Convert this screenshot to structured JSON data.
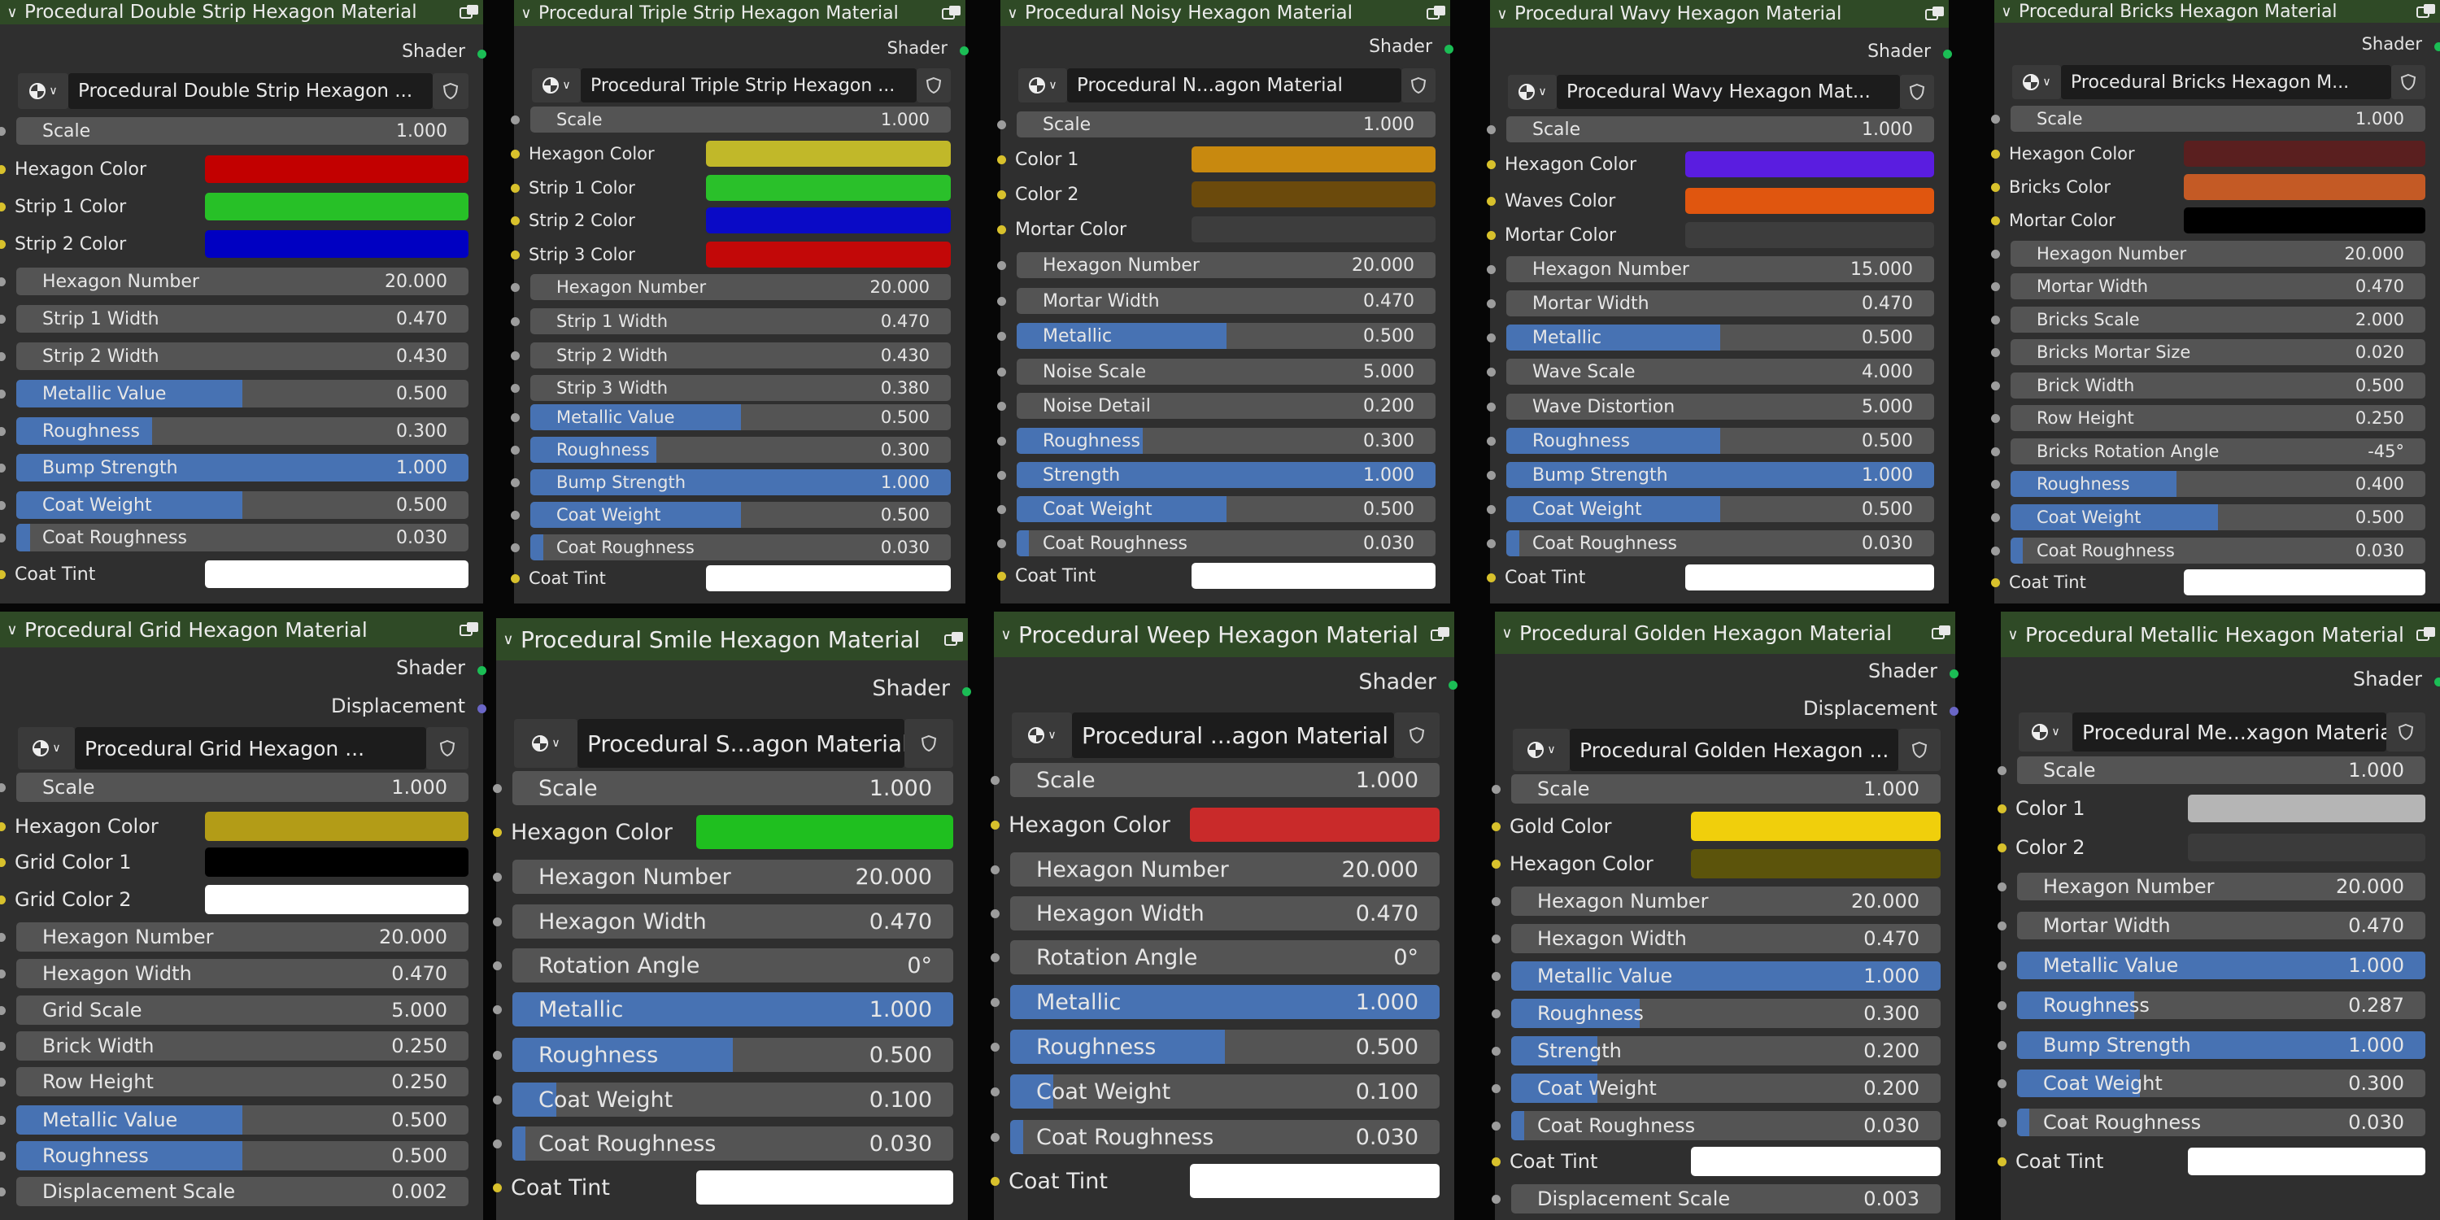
{
  "labels": {
    "shader": "Shader",
    "displacement": "Displacement"
  },
  "colors": {
    "header_bg": "#2f4a26",
    "node_bg": "#2f2f2f",
    "field_bg": "#545454",
    "slider_fill": "#4772b3",
    "socket_shader": "#1bbd55",
    "socket_color": "#d8c12c",
    "socket_value": "#9c9c9c",
    "socket_vector": "#6a66c6"
  },
  "nodes": [
    {
      "title": "Procedural Double Strip Hexagon Material",
      "material": "Procedural Double Strip Hexagon ...",
      "outputs": [
        "Shader"
      ],
      "inputs": [
        {
          "kind": "value",
          "label": "Scale",
          "value": "1.000"
        },
        {
          "kind": "color",
          "label": "Hexagon Color",
          "color": "#c20000"
        },
        {
          "kind": "color",
          "label": "Strip 1 Color",
          "color": "#27c027"
        },
        {
          "kind": "color",
          "label": "Strip 2 Color",
          "color": "#0000c2"
        },
        {
          "kind": "value",
          "label": "Hexagon Number",
          "value": "20.000"
        },
        {
          "kind": "value",
          "label": "Strip 1 Width",
          "value": "0.470"
        },
        {
          "kind": "value",
          "label": "Strip 2 Width",
          "value": "0.430"
        },
        {
          "kind": "slider",
          "label": "Metallic Value",
          "value": "0.500",
          "fill": 0.5
        },
        {
          "kind": "slider",
          "label": "Roughness",
          "value": "0.300",
          "fill": 0.3
        },
        {
          "kind": "slider",
          "label": "Bump Strength",
          "value": "1.000",
          "fill": 1.0
        },
        {
          "kind": "slider",
          "label": "Coat Weight",
          "value": "0.500",
          "fill": 0.5
        },
        {
          "kind": "slider",
          "label": "Coat Roughness",
          "value": "0.030",
          "fill": 0.03
        },
        {
          "kind": "color",
          "label": "Coat Tint",
          "color": "#ffffff"
        }
      ]
    },
    {
      "title": "Procedural Triple Strip Hexagon Material",
      "material": "Procedural Triple Strip Hexagon ...",
      "outputs": [
        "Shader"
      ],
      "inputs": [
        {
          "kind": "value",
          "label": "Scale",
          "value": "1.000"
        },
        {
          "kind": "color",
          "label": "Hexagon Color",
          "color": "#c1b829"
        },
        {
          "kind": "color",
          "label": "Strip 1 Color",
          "color": "#2ac02a"
        },
        {
          "kind": "color",
          "label": "Strip 2 Color",
          "color": "#0a0ac6"
        },
        {
          "kind": "color",
          "label": "Strip 3 Color",
          "color": "#c20808"
        },
        {
          "kind": "value",
          "label": "Hexagon Number",
          "value": "20.000"
        },
        {
          "kind": "value",
          "label": "Strip 1 Width",
          "value": "0.470"
        },
        {
          "kind": "value",
          "label": "Strip 2 Width",
          "value": "0.430"
        },
        {
          "kind": "value",
          "label": "Strip 3 Width",
          "value": "0.380"
        },
        {
          "kind": "slider",
          "label": "Metallic Value",
          "value": "0.500",
          "fill": 0.5
        },
        {
          "kind": "slider",
          "label": "Roughness",
          "value": "0.300",
          "fill": 0.3
        },
        {
          "kind": "slider",
          "label": "Bump Strength",
          "value": "1.000",
          "fill": 1.0
        },
        {
          "kind": "slider",
          "label": "Coat Weight",
          "value": "0.500",
          "fill": 0.5
        },
        {
          "kind": "slider",
          "label": "Coat Roughness",
          "value": "0.030",
          "fill": 0.03
        },
        {
          "kind": "color",
          "label": "Coat Tint",
          "color": "#ffffff"
        }
      ]
    },
    {
      "title": "Procedural Noisy Hexagon Material",
      "material": "Procedural N...agon Material",
      "outputs": [
        "Shader"
      ],
      "inputs": [
        {
          "kind": "value",
          "label": "Scale",
          "value": "1.000"
        },
        {
          "kind": "color",
          "label": "Color 1",
          "color": "#c8890f"
        },
        {
          "kind": "color",
          "label": "Color 2",
          "color": "#6b4a0c"
        },
        {
          "kind": "color",
          "label": "Mortar Color",
          "color": "#3d3d3d"
        },
        {
          "kind": "value",
          "label": "Hexagon Number",
          "value": "20.000"
        },
        {
          "kind": "value",
          "label": "Mortar Width",
          "value": "0.470"
        },
        {
          "kind": "slider",
          "label": "Metallic",
          "value": "0.500",
          "fill": 0.5
        },
        {
          "kind": "value",
          "label": "Noise Scale",
          "value": "5.000"
        },
        {
          "kind": "value",
          "label": "Noise Detail",
          "value": "0.200"
        },
        {
          "kind": "slider",
          "label": "Roughness",
          "value": "0.300",
          "fill": 0.3
        },
        {
          "kind": "slider",
          "label": "Strength",
          "value": "1.000",
          "fill": 1.0
        },
        {
          "kind": "slider",
          "label": "Coat Weight",
          "value": "0.500",
          "fill": 0.5
        },
        {
          "kind": "slider",
          "label": "Coat Roughness",
          "value": "0.030",
          "fill": 0.03
        },
        {
          "kind": "color",
          "label": "Coat Tint",
          "color": "#ffffff"
        }
      ]
    },
    {
      "title": "Procedural Wavy Hexagon Material",
      "material": "Procedural Wavy Hexagon Mat...",
      "outputs": [
        "Shader"
      ],
      "inputs": [
        {
          "kind": "value",
          "label": "Scale",
          "value": "1.000"
        },
        {
          "kind": "color",
          "label": "Hexagon Color",
          "color": "#5a1de0"
        },
        {
          "kind": "color",
          "label": "Waves Color",
          "color": "#e0560f"
        },
        {
          "kind": "color",
          "label": "Mortar Color",
          "color": "#3d3d3d"
        },
        {
          "kind": "value",
          "label": "Hexagon Number",
          "value": "15.000"
        },
        {
          "kind": "value",
          "label": "Mortar Width",
          "value": "0.470"
        },
        {
          "kind": "slider",
          "label": "Metallic",
          "value": "0.500",
          "fill": 0.5
        },
        {
          "kind": "value",
          "label": "Wave Scale",
          "value": "4.000"
        },
        {
          "kind": "value",
          "label": "Wave Distortion",
          "value": "5.000"
        },
        {
          "kind": "slider",
          "label": "Roughness",
          "value": "0.500",
          "fill": 0.5
        },
        {
          "kind": "slider",
          "label": "Bump Strength",
          "value": "1.000",
          "fill": 1.0
        },
        {
          "kind": "slider",
          "label": "Coat Weight",
          "value": "0.500",
          "fill": 0.5
        },
        {
          "kind": "slider",
          "label": "Coat Roughness",
          "value": "0.030",
          "fill": 0.03
        },
        {
          "kind": "color",
          "label": "Coat Tint",
          "color": "#ffffff"
        }
      ]
    },
    {
      "title": "Procedural Bricks Hexagon Material",
      "material": "Procedural Bricks Hexagon M...",
      "outputs": [
        "Shader"
      ],
      "inputs": [
        {
          "kind": "value",
          "label": "Scale",
          "value": "1.000"
        },
        {
          "kind": "color",
          "label": "Hexagon Color",
          "color": "#5a1f1f"
        },
        {
          "kind": "color",
          "label": "Bricks Color",
          "color": "#c45a25"
        },
        {
          "kind": "color",
          "label": "Mortar Color",
          "color": "#000000"
        },
        {
          "kind": "value",
          "label": "Hexagon Number",
          "value": "20.000"
        },
        {
          "kind": "value",
          "label": "Mortar Width",
          "value": "0.470"
        },
        {
          "kind": "value",
          "label": "Bricks Scale",
          "value": "2.000"
        },
        {
          "kind": "value",
          "label": "Bricks Mortar Size",
          "value": "0.020"
        },
        {
          "kind": "value",
          "label": "Brick Width",
          "value": "0.500"
        },
        {
          "kind": "value",
          "label": "Row Height",
          "value": "0.250"
        },
        {
          "kind": "value",
          "label": "Bricks Rotation Angle",
          "value": "-45°"
        },
        {
          "kind": "slider",
          "label": "Roughness",
          "value": "0.400",
          "fill": 0.4
        },
        {
          "kind": "slider",
          "label": "Coat Weight",
          "value": "0.500",
          "fill": 0.5
        },
        {
          "kind": "slider",
          "label": "Coat Roughness",
          "value": "0.030",
          "fill": 0.03
        },
        {
          "kind": "color",
          "label": "Coat Tint",
          "color": "#ffffff"
        }
      ]
    },
    {
      "title": "Procedural Grid Hexagon Material",
      "material": "Procedural Grid Hexagon ...",
      "outputs": [
        "Shader",
        "Displacement"
      ],
      "inputs": [
        {
          "kind": "value",
          "label": "Scale",
          "value": "1.000"
        },
        {
          "kind": "color",
          "label": "Hexagon Color",
          "color": "#b39c17"
        },
        {
          "kind": "color",
          "label": "Grid Color 1",
          "color": "#000000"
        },
        {
          "kind": "color",
          "label": "Grid Color 2",
          "color": "#ffffff"
        },
        {
          "kind": "value",
          "label": "Hexagon Number",
          "value": "20.000"
        },
        {
          "kind": "value",
          "label": "Hexagon Width",
          "value": "0.470"
        },
        {
          "kind": "value",
          "label": "Grid Scale",
          "value": "5.000"
        },
        {
          "kind": "value",
          "label": "Brick Width",
          "value": "0.250"
        },
        {
          "kind": "value",
          "label": "Row Height",
          "value": "0.250"
        },
        {
          "kind": "slider",
          "label": "Metallic Value",
          "value": "0.500",
          "fill": 0.5
        },
        {
          "kind": "slider",
          "label": "Roughness",
          "value": "0.500",
          "fill": 0.5
        },
        {
          "kind": "value",
          "label": "Displacement Scale",
          "value": "0.002"
        }
      ]
    },
    {
      "title": "Procedural Smile Hexagon Material",
      "material": "Procedural S...agon Material",
      "outputs": [
        "Shader"
      ],
      "inputs": [
        {
          "kind": "value",
          "label": "Scale",
          "value": "1.000"
        },
        {
          "kind": "color",
          "label": "Hexagon Color",
          "color": "#1fbf1f"
        },
        {
          "kind": "value",
          "label": "Hexagon Number",
          "value": "20.000"
        },
        {
          "kind": "value",
          "label": "Hexagon Width",
          "value": "0.470"
        },
        {
          "kind": "value",
          "label": "Rotation Angle",
          "value": "0°"
        },
        {
          "kind": "slider",
          "label": "Metallic",
          "value": "1.000",
          "fill": 1.0
        },
        {
          "kind": "slider",
          "label": "Roughness",
          "value": "0.500",
          "fill": 0.5
        },
        {
          "kind": "slider",
          "label": "Coat Weight",
          "value": "0.100",
          "fill": 0.1
        },
        {
          "kind": "slider",
          "label": "Coat Roughness",
          "value": "0.030",
          "fill": 0.03
        },
        {
          "kind": "color",
          "label": "Coat Tint",
          "color": "#ffffff"
        }
      ]
    },
    {
      "title": "Procedural Weep Hexagon Material",
      "material": "Procedural ...agon Material",
      "outputs": [
        "Shader"
      ],
      "inputs": [
        {
          "kind": "value",
          "label": "Scale",
          "value": "1.000"
        },
        {
          "kind": "color",
          "label": "Hexagon Color",
          "color": "#c92a2a"
        },
        {
          "kind": "value",
          "label": "Hexagon Number",
          "value": "20.000"
        },
        {
          "kind": "value",
          "label": "Hexagon Width",
          "value": "0.470"
        },
        {
          "kind": "value",
          "label": "Rotation Angle",
          "value": "0°"
        },
        {
          "kind": "slider",
          "label": "Metallic",
          "value": "1.000",
          "fill": 1.0
        },
        {
          "kind": "slider",
          "label": "Roughness",
          "value": "0.500",
          "fill": 0.5
        },
        {
          "kind": "slider",
          "label": "Coat Weight",
          "value": "0.100",
          "fill": 0.1
        },
        {
          "kind": "slider",
          "label": "Coat Roughness",
          "value": "0.030",
          "fill": 0.03
        },
        {
          "kind": "color",
          "label": "Coat Tint",
          "color": "#ffffff"
        }
      ]
    },
    {
      "title": "Procedural Golden Hexagon Material",
      "material": "Procedural Golden Hexagon ...",
      "outputs": [
        "Shader",
        "Displacement"
      ],
      "inputs": [
        {
          "kind": "value",
          "label": "Scale",
          "value": "1.000"
        },
        {
          "kind": "color",
          "label": "Gold Color",
          "color": "#f0cf0c"
        },
        {
          "kind": "color",
          "label": "Hexagon Color",
          "color": "#5c540b"
        },
        {
          "kind": "value",
          "label": "Hexagon Number",
          "value": "20.000"
        },
        {
          "kind": "value",
          "label": "Hexagon Width",
          "value": "0.470"
        },
        {
          "kind": "slider",
          "label": "Metallic Value",
          "value": "1.000",
          "fill": 1.0
        },
        {
          "kind": "slider",
          "label": "Roughness",
          "value": "0.300",
          "fill": 0.3
        },
        {
          "kind": "slider",
          "label": "Strength",
          "value": "0.200",
          "fill": 0.2
        },
        {
          "kind": "slider",
          "label": "Coat Weight",
          "value": "0.200",
          "fill": 0.2
        },
        {
          "kind": "slider",
          "label": "Coat Roughness",
          "value": "0.030",
          "fill": 0.03
        },
        {
          "kind": "color",
          "label": "Coat Tint",
          "color": "#ffffff"
        },
        {
          "kind": "value",
          "label": "Displacement Scale",
          "value": "0.003"
        }
      ]
    },
    {
      "title": "Procedural Metallic Hexagon Material",
      "material": "Procedural Me...xagon Material",
      "outputs": [
        "Shader"
      ],
      "inputs": [
        {
          "kind": "value",
          "label": "Scale",
          "value": "1.000"
        },
        {
          "kind": "color",
          "label": "Color 1",
          "color": "#b5b5b5"
        },
        {
          "kind": "color",
          "label": "Color 2",
          "color": "#3b3b3b"
        },
        {
          "kind": "value",
          "label": "Hexagon Number",
          "value": "20.000"
        },
        {
          "kind": "value",
          "label": "Mortar Width",
          "value": "0.470"
        },
        {
          "kind": "slider",
          "label": "Metallic Value",
          "value": "1.000",
          "fill": 1.0
        },
        {
          "kind": "slider",
          "label": "Roughness",
          "value": "0.287",
          "fill": 0.287
        },
        {
          "kind": "slider",
          "label": "Bump Strength",
          "value": "1.000",
          "fill": 1.0
        },
        {
          "kind": "slider",
          "label": "Coat Weight",
          "value": "0.300",
          "fill": 0.3
        },
        {
          "kind": "slider",
          "label": "Coat Roughness",
          "value": "0.030",
          "fill": 0.03
        },
        {
          "kind": "color",
          "label": "Coat Tint",
          "color": "#ffffff"
        }
      ]
    }
  ]
}
